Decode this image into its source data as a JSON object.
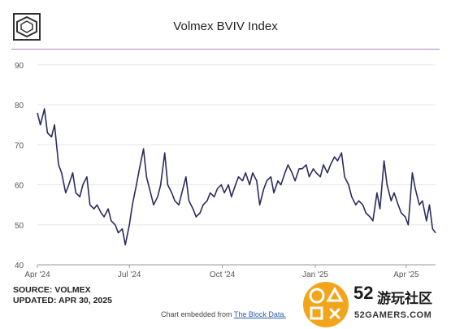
{
  "header": {
    "title": "Volmex BVIV Index"
  },
  "footer": {
    "source": "SOURCE: VOLMEX",
    "updated": "UPDATED: APR 30, 2025",
    "embed_prefix": "Chart embedded from ",
    "embed_link": "The Block Data."
  },
  "watermark": {
    "number": "52",
    "name": "游玩社区",
    "site": "52GAMERS.COM"
  },
  "colors": {
    "line": "#2b2b5e",
    "accent": "#b084c9",
    "grid": "#e6e6e6"
  },
  "chart_data": {
    "type": "line",
    "title": "Volmex BVIV Index",
    "xlabel": "",
    "ylabel": "",
    "ylim": [
      40,
      92
    ],
    "y_ticks": [
      40,
      50,
      60,
      70,
      80,
      90
    ],
    "x_ticks": [
      {
        "date": "2024-04-01",
        "label": "Apr '24"
      },
      {
        "date": "2024-07-01",
        "label": "Jul '24"
      },
      {
        "date": "2024-10-01",
        "label": "Oct '24"
      },
      {
        "date": "2025-01-01",
        "label": "Jan '25"
      },
      {
        "date": "2025-04-01",
        "label": "Apr '25"
      }
    ],
    "xlim": [
      "2024-04-01",
      "2025-04-30"
    ],
    "grid": true,
    "series": [
      {
        "values": [
          [
            "2024-04-01",
            78
          ],
          [
            "2024-04-04",
            75
          ],
          [
            "2024-04-08",
            79
          ],
          [
            "2024-04-11",
            73
          ],
          [
            "2024-04-15",
            72
          ],
          [
            "2024-04-18",
            75
          ],
          [
            "2024-04-22",
            65
          ],
          [
            "2024-04-25",
            63
          ],
          [
            "2024-04-29",
            58
          ],
          [
            "2024-05-02",
            60
          ],
          [
            "2024-05-06",
            63
          ],
          [
            "2024-05-09",
            58
          ],
          [
            "2024-05-13",
            57
          ],
          [
            "2024-05-16",
            60
          ],
          [
            "2024-05-20",
            62
          ],
          [
            "2024-05-23",
            55
          ],
          [
            "2024-05-27",
            54
          ],
          [
            "2024-05-30",
            55
          ],
          [
            "2024-06-03",
            53
          ],
          [
            "2024-06-06",
            52
          ],
          [
            "2024-06-10",
            54
          ],
          [
            "2024-06-13",
            51
          ],
          [
            "2024-06-17",
            50
          ],
          [
            "2024-06-20",
            48
          ],
          [
            "2024-06-24",
            49
          ],
          [
            "2024-06-27",
            45
          ],
          [
            "2024-07-01",
            50
          ],
          [
            "2024-07-04",
            55
          ],
          [
            "2024-07-08",
            60
          ],
          [
            "2024-07-11",
            64
          ],
          [
            "2024-07-15",
            69
          ],
          [
            "2024-07-18",
            62
          ],
          [
            "2024-07-22",
            58
          ],
          [
            "2024-07-25",
            55
          ],
          [
            "2024-07-29",
            57
          ],
          [
            "2024-08-01",
            60
          ],
          [
            "2024-08-05",
            68
          ],
          [
            "2024-08-08",
            60
          ],
          [
            "2024-08-12",
            58
          ],
          [
            "2024-08-15",
            56
          ],
          [
            "2024-08-19",
            55
          ],
          [
            "2024-08-22",
            58
          ],
          [
            "2024-08-26",
            62
          ],
          [
            "2024-08-29",
            56
          ],
          [
            "2024-09-02",
            54
          ],
          [
            "2024-09-05",
            52
          ],
          [
            "2024-09-09",
            53
          ],
          [
            "2024-09-12",
            55
          ],
          [
            "2024-09-16",
            56
          ],
          [
            "2024-09-19",
            58
          ],
          [
            "2024-09-23",
            57
          ],
          [
            "2024-09-26",
            59
          ],
          [
            "2024-09-30",
            60
          ],
          [
            "2024-10-03",
            58
          ],
          [
            "2024-10-07",
            60
          ],
          [
            "2024-10-10",
            57
          ],
          [
            "2024-10-14",
            60
          ],
          [
            "2024-10-17",
            62
          ],
          [
            "2024-10-21",
            61
          ],
          [
            "2024-10-24",
            63
          ],
          [
            "2024-10-28",
            60
          ],
          [
            "2024-10-31",
            63
          ],
          [
            "2024-11-04",
            61
          ],
          [
            "2024-11-07",
            55
          ],
          [
            "2024-11-11",
            59
          ],
          [
            "2024-11-14",
            61
          ],
          [
            "2024-11-18",
            62
          ],
          [
            "2024-11-21",
            58
          ],
          [
            "2024-11-25",
            61
          ],
          [
            "2024-11-28",
            60
          ],
          [
            "2024-12-02",
            63
          ],
          [
            "2024-12-05",
            65
          ],
          [
            "2024-12-09",
            63
          ],
          [
            "2024-12-12",
            61
          ],
          [
            "2024-12-16",
            64
          ],
          [
            "2024-12-19",
            64
          ],
          [
            "2024-12-23",
            65
          ],
          [
            "2024-12-26",
            62
          ],
          [
            "2024-12-30",
            64
          ],
          [
            "2025-01-02",
            63
          ],
          [
            "2025-01-06",
            62
          ],
          [
            "2025-01-09",
            65
          ],
          [
            "2025-01-13",
            63
          ],
          [
            "2025-01-16",
            65
          ],
          [
            "2025-01-20",
            67
          ],
          [
            "2025-01-23",
            66
          ],
          [
            "2025-01-27",
            68
          ],
          [
            "2025-01-30",
            62
          ],
          [
            "2025-02-03",
            60
          ],
          [
            "2025-02-06",
            57
          ],
          [
            "2025-02-10",
            55
          ],
          [
            "2025-02-13",
            56
          ],
          [
            "2025-02-17",
            55
          ],
          [
            "2025-02-20",
            53
          ],
          [
            "2025-02-24",
            52
          ],
          [
            "2025-02-27",
            51
          ],
          [
            "2025-03-03",
            58
          ],
          [
            "2025-03-06",
            54
          ],
          [
            "2025-03-10",
            66
          ],
          [
            "2025-03-13",
            60
          ],
          [
            "2025-03-17",
            56
          ],
          [
            "2025-03-20",
            58
          ],
          [
            "2025-03-24",
            55
          ],
          [
            "2025-03-27",
            53
          ],
          [
            "2025-03-31",
            52
          ],
          [
            "2025-04-03",
            50
          ],
          [
            "2025-04-07",
            63
          ],
          [
            "2025-04-10",
            59
          ],
          [
            "2025-04-14",
            55
          ],
          [
            "2025-04-17",
            56
          ],
          [
            "2025-04-21",
            51
          ],
          [
            "2025-04-24",
            55
          ],
          [
            "2025-04-27",
            49
          ],
          [
            "2025-04-30",
            48
          ]
        ]
      }
    ]
  }
}
